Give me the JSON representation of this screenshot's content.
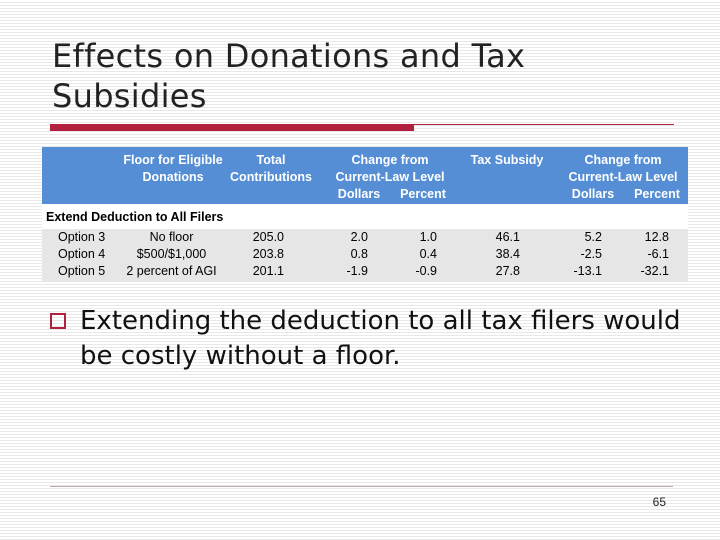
{
  "colors": {
    "accent": "#b3203e",
    "header_bg": "#558ed5",
    "row_alt": "#e6e6e6"
  },
  "slide": {
    "title": "Effects on Donations and Tax Subsidies",
    "bullet": "Extending the deduction to all tax filers would be costly without a floor.",
    "page_number": "65"
  },
  "table": {
    "headers": {
      "floor": [
        "Floor for Eligible",
        "Donations"
      ],
      "total": [
        "Total",
        "Contributions"
      ],
      "change_cur": [
        "Change from",
        "Current-Law Level"
      ],
      "tax_subsidy": "Tax Subsidy",
      "change_sub": [
        "Change from",
        "Current-Law Level"
      ],
      "dollars": "Dollars",
      "percent": "Percent"
    },
    "section_label": "Extend Deduction to All Filers",
    "rows": [
      {
        "label": "Option 3",
        "floor": "No floor",
        "total": "205.0",
        "chg_dollars": "2.0",
        "chg_percent": "1.0",
        "subsidy": "46.1",
        "sub_dollars": "5.2",
        "sub_percent": "12.8"
      },
      {
        "label": "Option 4",
        "floor": "$500/$1,000",
        "total": "203.8",
        "chg_dollars": "0.8",
        "chg_percent": "0.4",
        "subsidy": "38.4",
        "sub_dollars": "-2.5",
        "sub_percent": "-6.1"
      },
      {
        "label": "Option 5",
        "floor": "2 percent of AGI",
        "total": "201.1",
        "chg_dollars": "-1.9",
        "chg_percent": "-0.9",
        "subsidy": "27.8",
        "sub_dollars": "-13.1",
        "sub_percent": "-32.1"
      }
    ]
  }
}
